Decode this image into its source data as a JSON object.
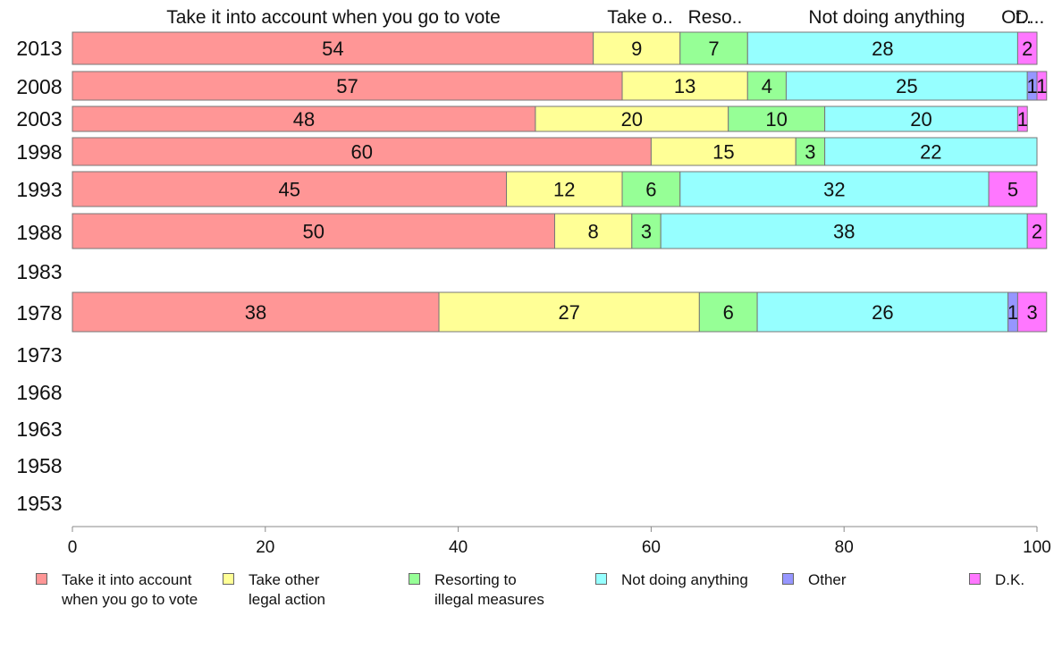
{
  "chart_data": {
    "type": "bar",
    "orientation": "horizontal",
    "stacked": true,
    "categories": [
      "2013",
      "2008",
      "2003",
      "1998",
      "1993",
      "1988",
      "1983",
      "1978",
      "1973",
      "1968",
      "1963",
      "1958",
      "1953"
    ],
    "series": [
      {
        "name": "Take it into account when you go to vote",
        "color": "#ff9696",
        "values": [
          54,
          57,
          48,
          60,
          45,
          50,
          null,
          38,
          null,
          null,
          null,
          null,
          null
        ]
      },
      {
        "name": "Take other legal action",
        "color": "#ffff96",
        "values": [
          9,
          13,
          20,
          15,
          12,
          8,
          null,
          27,
          null,
          null,
          null,
          null,
          null
        ]
      },
      {
        "name": "Resorting to illegal measures",
        "color": "#96ff96",
        "values": [
          7,
          4,
          10,
          3,
          6,
          3,
          null,
          6,
          null,
          null,
          null,
          null,
          null
        ]
      },
      {
        "name": "Not doing anything",
        "color": "#96ffff",
        "values": [
          28,
          25,
          20,
          22,
          32,
          38,
          null,
          26,
          null,
          null,
          null,
          null,
          null
        ]
      },
      {
        "name": "Other",
        "color": "#9696ff",
        "values": [
          0,
          1,
          0,
          0,
          0,
          0,
          null,
          1,
          null,
          null,
          null,
          null,
          null
        ]
      },
      {
        "name": "D.K.",
        "color": "#ff77ff",
        "values": [
          2,
          1,
          1,
          0,
          5,
          2,
          null,
          3,
          null,
          null,
          null,
          null,
          null
        ]
      }
    ],
    "top_labels": [
      "Take it into account when you go to vote",
      "Take o..",
      "Reso..",
      "Not doing anything",
      "Ot..",
      "D..."
    ],
    "xlim": [
      0,
      100
    ],
    "xticks": [
      0,
      20,
      40,
      60,
      80,
      100
    ],
    "grid": false,
    "legend_position": "bottom"
  },
  "legend": {
    "items": [
      {
        "label": "Take it into account\nwhen you go to vote",
        "color": "#ff9696"
      },
      {
        "label": "Take other\nlegal action",
        "color": "#ffff96"
      },
      {
        "label": "Resorting to\nillegal measures",
        "color": "#96ff96"
      },
      {
        "label": "Not doing anything",
        "color": "#96ffff"
      },
      {
        "label": "Other",
        "color": "#9696ff"
      },
      {
        "label": "D.K.",
        "color": "#ff77ff"
      }
    ]
  }
}
